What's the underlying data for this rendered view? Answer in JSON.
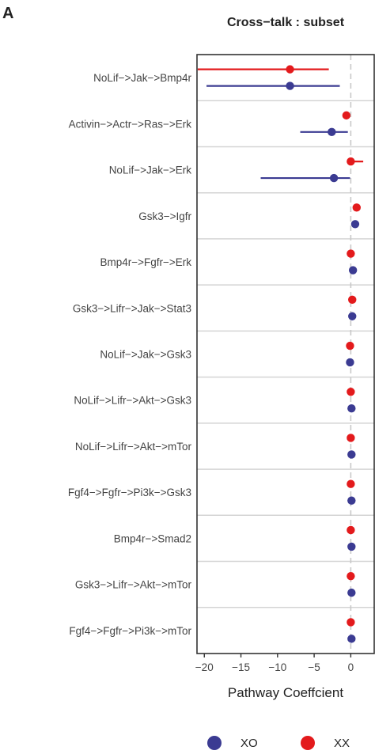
{
  "panel_letter": "A",
  "chart_data": {
    "type": "scatter",
    "subtype": "dot-whisker",
    "title": "Cross−talk : subset",
    "xlabel": "Pathway Coeffcient",
    "ylabel": "",
    "xlim": [
      -21,
      3.2
    ],
    "xticks": [
      -20,
      -15,
      -10,
      -5,
      0
    ],
    "xtick_labels": [
      "−20",
      "−15",
      "−10",
      "−5",
      "0"
    ],
    "reference_line": 0,
    "grid": true,
    "legend_position": "bottom",
    "categories": [
      "NoLif−>Jak−>Bmp4r",
      "Activin−>Actr−>Ras−>Erk",
      "NoLif−>Jak−>Erk",
      "Gsk3−>Igfr",
      "Bmp4r−>Fgfr−>Erk",
      "Gsk3−>Lifr−>Jak−>Stat3",
      "NoLif−>Jak−>Gsk3",
      "NoLif−>Lifr−>Akt−>Gsk3",
      "NoLif−>Lifr−>Akt−>mTor",
      "Fgf4−>Fgfr−>Pi3k−>Gsk3",
      "Bmp4r−>Smad2",
      "Gsk3−>Lifr−>Akt−>mTor",
      "Fgf4−>Fgfr−>Pi3k−>mTor"
    ],
    "series": [
      {
        "name": "XO",
        "color": "#3b3b92",
        "values": [
          -8.3,
          -2.6,
          -2.3,
          0.6,
          0.3,
          0.2,
          -0.1,
          0.1,
          0.1,
          0.1,
          0.1,
          0.1,
          0.1
        ],
        "lower": [
          -19.7,
          -6.9,
          -12.3,
          0.6,
          0.3,
          0.2,
          -0.1,
          0.1,
          0.1,
          0.1,
          0.1,
          0.1,
          0.1
        ],
        "upper": [
          -1.5,
          -0.4,
          -0.1,
          0.6,
          0.3,
          0.2,
          -0.1,
          0.1,
          0.1,
          0.1,
          0.1,
          0.1,
          0.1
        ]
      },
      {
        "name": "XX",
        "color": "#e31a1c",
        "values": [
          -8.3,
          -0.6,
          0.0,
          0.8,
          0.0,
          0.2,
          -0.1,
          0.0,
          0.0,
          0.0,
          0.0,
          0.0,
          0.0
        ],
        "lower": [
          -20.9,
          -0.6,
          0.0,
          0.8,
          0.0,
          0.2,
          -0.1,
          0.0,
          0.0,
          0.0,
          0.0,
          0.0,
          0.0
        ],
        "upper": [
          -3.0,
          -0.6,
          1.7,
          0.8,
          0.0,
          0.2,
          -0.1,
          0.0,
          0.0,
          0.0,
          0.0,
          0.0,
          0.0
        ]
      }
    ],
    "legend": [
      {
        "label": "XO",
        "color": "#3b3b92"
      },
      {
        "label": "XX",
        "color": "#e31a1c"
      }
    ]
  }
}
